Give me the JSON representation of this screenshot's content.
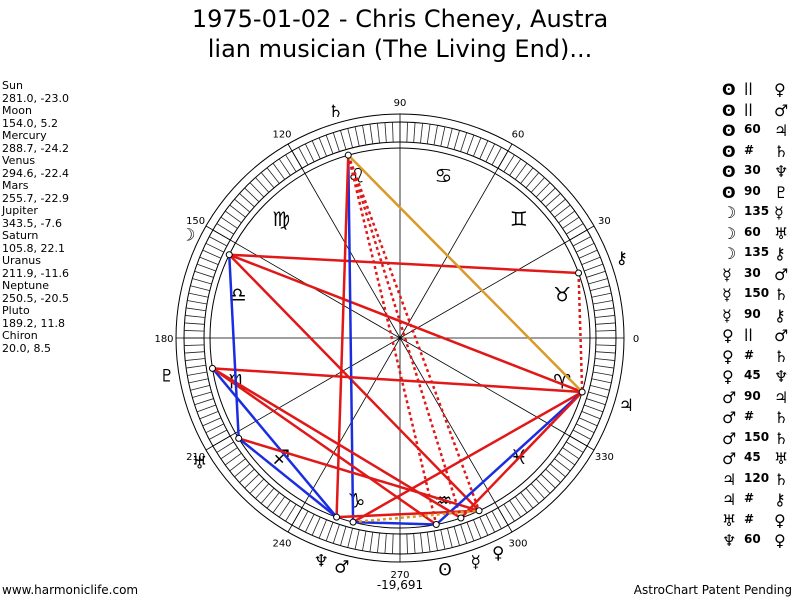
{
  "title": {
    "line1": "1975-01-02 - Chris Cheney, Austra",
    "line2": "lian musician (The Living End)..."
  },
  "planets": [
    {
      "name": "Sun",
      "lon": 281.0,
      "lat": -23.0,
      "coords": "281.0, -23.0",
      "glyph": "ʘ"
    },
    {
      "name": "Moon",
      "lon": 154.0,
      "lat": 5.2,
      "coords": "154.0, 5.2",
      "glyph": "☽"
    },
    {
      "name": "Mercury",
      "lon": 288.7,
      "lat": -24.2,
      "coords": "288.7, -24.2",
      "glyph": "☿"
    },
    {
      "name": "Venus",
      "lon": 294.6,
      "lat": -22.4,
      "coords": "294.6, -22.4",
      "glyph": "♀"
    },
    {
      "name": "Mars",
      "lon": 255.7,
      "lat": -22.9,
      "coords": "255.7, -22.9",
      "glyph": "♂"
    },
    {
      "name": "Jupiter",
      "lon": 343.5,
      "lat": -7.6,
      "coords": "343.5, -7.6",
      "glyph": "♃"
    },
    {
      "name": "Saturn",
      "lon": 105.8,
      "lat": 22.1,
      "coords": "105.8, 22.1",
      "glyph": "♄"
    },
    {
      "name": "Uranus",
      "lon": 211.9,
      "lat": -11.6,
      "coords": "211.9, -11.6",
      "glyph": "♅"
    },
    {
      "name": "Neptune",
      "lon": 250.5,
      "lat": -20.5,
      "coords": "250.5, -20.5",
      "glyph": "♆"
    },
    {
      "name": "Pluto",
      "lon": 189.2,
      "lat": 11.8,
      "coords": "189.2, 11.8",
      "glyph": "♇"
    },
    {
      "name": "Chiron",
      "lon": 20.0,
      "lat": 8.5,
      "coords": "20.0, 8.5",
      "glyph": "⚷"
    }
  ],
  "aspects": [
    {
      "p1": "ʘ",
      "sym": "||",
      "p2": "♀"
    },
    {
      "p1": "ʘ",
      "sym": "||",
      "p2": "♂"
    },
    {
      "p1": "ʘ",
      "sym": "60",
      "p2": "♃"
    },
    {
      "p1": "ʘ",
      "sym": "#",
      "p2": "♄"
    },
    {
      "p1": "ʘ",
      "sym": "30",
      "p2": "♆"
    },
    {
      "p1": "ʘ",
      "sym": "90",
      "p2": "♇"
    },
    {
      "p1": "☽",
      "sym": "135",
      "p2": "☿"
    },
    {
      "p1": "☽",
      "sym": "60",
      "p2": "♅"
    },
    {
      "p1": "☽",
      "sym": "135",
      "p2": "⚷"
    },
    {
      "p1": "☿",
      "sym": "30",
      "p2": "♂"
    },
    {
      "p1": "☿",
      "sym": "150",
      "p2": "♄"
    },
    {
      "p1": "☿",
      "sym": "90",
      "p2": "⚷"
    },
    {
      "p1": "♀",
      "sym": "||",
      "p2": "♂"
    },
    {
      "p1": "♀",
      "sym": "#",
      "p2": "♄"
    },
    {
      "p1": "♀",
      "sym": "45",
      "p2": "♆"
    },
    {
      "p1": "♂",
      "sym": "90",
      "p2": "♃"
    },
    {
      "p1": "♂",
      "sym": "#",
      "p2": "♄"
    },
    {
      "p1": "♂",
      "sym": "150",
      "p2": "♄"
    },
    {
      "p1": "♂",
      "sym": "45",
      "p2": "♅"
    },
    {
      "p1": "♃",
      "sym": "120",
      "p2": "♄"
    },
    {
      "p1": "♃",
      "sym": "#",
      "p2": "⚷"
    },
    {
      "p1": "♅",
      "sym": "#",
      "p2": "♀"
    },
    {
      "p1": "♆",
      "sym": "60",
      "p2": "♀"
    }
  ],
  "wheel": {
    "degree_labels": [
      "0",
      "30",
      "60",
      "90",
      "120",
      "150",
      "180",
      "210",
      "240",
      "270",
      "300",
      "330"
    ],
    "zodiac_glyphs": [
      "♉",
      "♊",
      "♋",
      "♌",
      "♍",
      "♎",
      "♏",
      "♐",
      "♑",
      "♒",
      "♓",
      "♈"
    ],
    "bottom_value": "-19,691"
  },
  "aspect_lines": [
    {
      "a": "Moon",
      "b": "Jupiter",
      "color": "red",
      "dashed": false
    },
    {
      "a": "Moon",
      "b": "Chiron",
      "color": "red",
      "dashed": false
    },
    {
      "a": "Moon",
      "b": "Venus",
      "color": "red",
      "dashed": false
    },
    {
      "a": "Saturn",
      "b": "Jupiter",
      "color": "orange",
      "dashed": false
    },
    {
      "a": "Saturn",
      "b": "Mars",
      "color": "blue",
      "dashed": false
    },
    {
      "a": "Saturn",
      "b": "Neptune",
      "color": "red",
      "dashed": false
    },
    {
      "a": "Saturn",
      "b": "Sun",
      "color": "red",
      "dashed": true
    },
    {
      "a": "Saturn",
      "b": "Mercury",
      "color": "red",
      "dashed": true
    },
    {
      "a": "Saturn",
      "b": "Venus",
      "color": "red",
      "dashed": true
    },
    {
      "a": "Pluto",
      "b": "Jupiter",
      "color": "red",
      "dashed": false
    },
    {
      "a": "Pluto",
      "b": "Sun",
      "color": "red",
      "dashed": false
    },
    {
      "a": "Pluto",
      "b": "Neptune",
      "color": "blue",
      "dashed": false
    },
    {
      "a": "Pluto",
      "b": "Mercury",
      "color": "red",
      "dashed": false
    },
    {
      "a": "Uranus",
      "b": "Moon",
      "color": "blue",
      "dashed": false
    },
    {
      "a": "Uranus",
      "b": "Venus",
      "color": "red",
      "dashed": false
    },
    {
      "a": "Uranus",
      "b": "Neptune",
      "color": "blue",
      "dashed": false
    },
    {
      "a": "Jupiter",
      "b": "Mars",
      "color": "red",
      "dashed": false
    },
    {
      "a": "Jupiter",
      "b": "Sun",
      "color": "blue",
      "dashed": false
    },
    {
      "a": "Jupiter",
      "b": "Mercury",
      "color": "red",
      "dashed": false
    },
    {
      "a": "Chiron",
      "b": "Jupiter",
      "color": "red",
      "dashed": true
    },
    {
      "a": "Neptune",
      "b": "Venus",
      "color": "red",
      "dashed": false
    },
    {
      "a": "Mars",
      "b": "Sun",
      "color": "blue",
      "dashed": false
    },
    {
      "a": "Mars",
      "b": "Venus",
      "color": "orange",
      "dashed": true
    }
  ],
  "footer": {
    "left": "www.harmoniclife.com",
    "right": "AstroChart Patent Pending"
  },
  "colors": {
    "red": "#e01818",
    "blue": "#1a2ee0",
    "orange": "#d99a2a",
    "ring_dark": "#333333"
  }
}
